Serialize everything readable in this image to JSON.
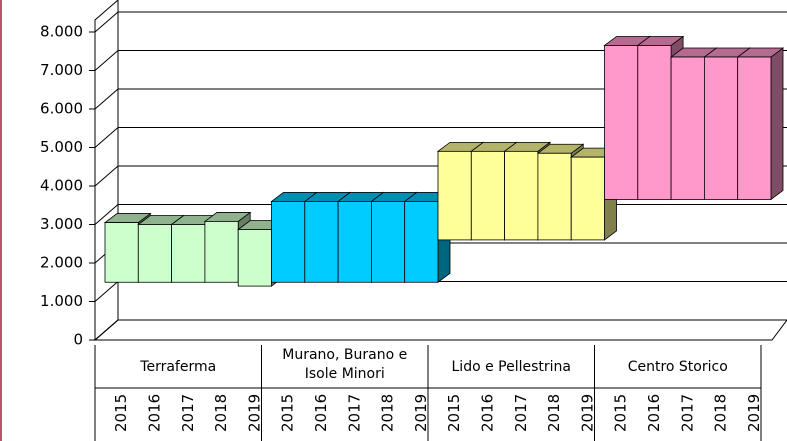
{
  "chart_data": {
    "type": "floating-bar",
    "groups": [
      {
        "name": "Terraferma",
        "color": "#ccffcc",
        "years": [
          "2015",
          "2016",
          "2017",
          "2018",
          "2019"
        ],
        "lows": [
          1500,
          1500,
          1500,
          1500,
          1400
        ],
        "values": [
          3050,
          3000,
          3000,
          3080,
          2870
        ]
      },
      {
        "name": "Murano, Burano e Isole Minori",
        "color": "#00ccff",
        "years": [
          "2015",
          "2016",
          "2017",
          "2018",
          "2019"
        ],
        "lows": [
          1500,
          1500,
          1500,
          1500,
          1500
        ],
        "values": [
          3600,
          3600,
          3600,
          3600,
          3600
        ]
      },
      {
        "name": "Lido e Pellestrina",
        "color": "#ffff99",
        "years": [
          "2015",
          "2016",
          "2017",
          "2018",
          "2019"
        ],
        "lows": [
          2600,
          2600,
          2600,
          2600,
          2600
        ],
        "values": [
          4900,
          4900,
          4900,
          4850,
          4750
        ]
      },
      {
        "name": "Centro Storico",
        "color": "#ff99cc",
        "years": [
          "2015",
          "2016",
          "2017",
          "2018",
          "2019"
        ],
        "lows": [
          3650,
          3650,
          3650,
          3650,
          3650
        ],
        "values": [
          7650,
          7650,
          7350,
          7350,
          7350
        ]
      }
    ],
    "ylim": [
      0,
      8000
    ],
    "yticks": [
      0,
      {
        "value": 1000,
        "label": "1.000"
      },
      {
        "value": 2000,
        "label": "2.000"
      },
      {
        "value": 3000,
        "label": "3.000"
      },
      {
        "value": 4000,
        "label": "4.000"
      },
      {
        "value": 5000,
        "label": "5.000"
      },
      {
        "value": 6000,
        "label": "6.000"
      },
      {
        "value": 7000,
        "label": "7.000"
      },
      {
        "value": 8000,
        "label": "8.000"
      }
    ],
    "grid": true
  }
}
